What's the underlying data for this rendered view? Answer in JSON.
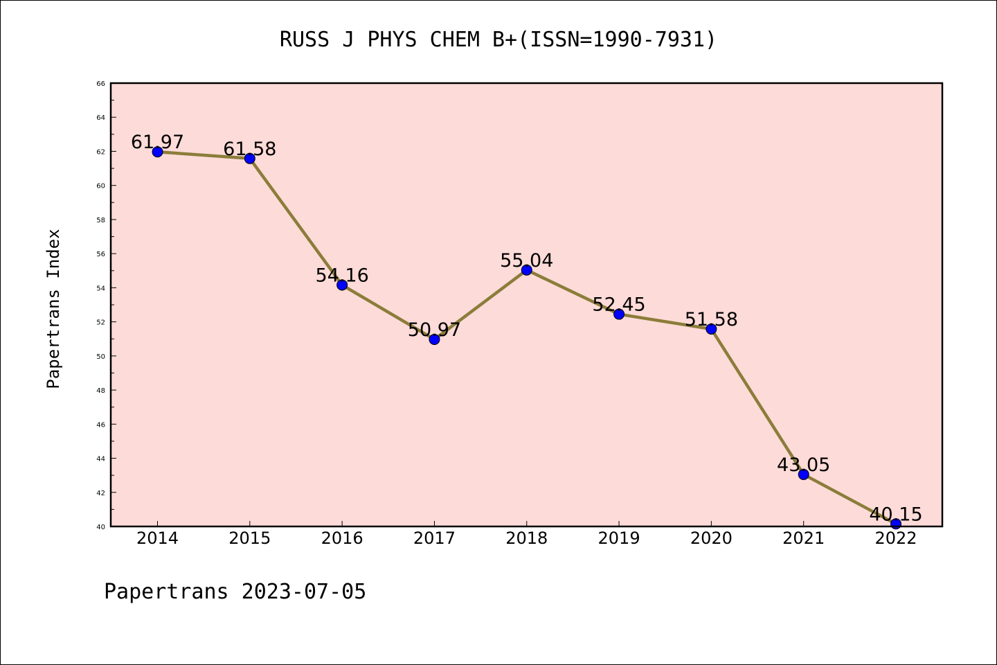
{
  "chart_data": {
    "type": "line",
    "title": "RUSS J PHYS CHEM B+(ISSN=1990-7931)",
    "xlabel": "",
    "ylabel": "Papertrans Index",
    "categories": [
      "2014",
      "2015",
      "2016",
      "2017",
      "2018",
      "2019",
      "2020",
      "2021",
      "2022"
    ],
    "series": [
      {
        "values": [
          61.97,
          61.58,
          54.16,
          50.97,
          55.04,
          52.45,
          51.58,
          43.05,
          40.15
        ],
        "data_labels": [
          "61.97",
          "61.58",
          "54.16",
          "50.97",
          "55.04",
          "52.45",
          "51.58",
          "43.05",
          "40.15"
        ]
      }
    ],
    "ylim": [
      40,
      66
    ],
    "yticks": [
      "40",
      "42",
      "44",
      "46",
      "48",
      "50",
      "52",
      "54",
      "56",
      "58",
      "60",
      "62",
      "64",
      "66"
    ],
    "grid": false,
    "footer": "Papertrans 2023-07-05",
    "colors": {
      "plot_background": "#fddbd8",
      "line": "#8b7d3a",
      "marker": "#0000ff",
      "axis": "#000000"
    }
  }
}
